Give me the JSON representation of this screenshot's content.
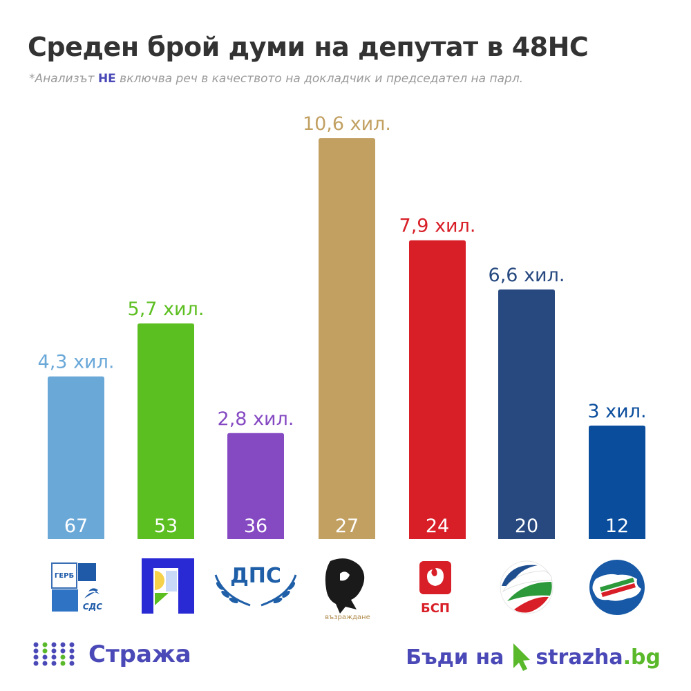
{
  "title": "Среден брой думи на депутат в 48НС",
  "subtitle": {
    "prefix": "*Анализът ",
    "highlight": "НЕ",
    "suffix": " включва реч в качеството на докладчик и председател на парл."
  },
  "chart_data": {
    "type": "bar",
    "title": "Среден брой думи на депутат в 48НС",
    "categories": [
      "ГЕРБ-СДС",
      "ПП",
      "ДПС",
      "Възраждане",
      "БСП",
      "ИТН",
      "БВ"
    ],
    "values": [
      4.3,
      5.7,
      2.8,
      10.6,
      7.9,
      6.6,
      3.0
    ],
    "value_labels": [
      "4,3 хил.",
      "5,7 хил.",
      "2,8 хил.",
      "10,6 хил.",
      "7,9 хил.",
      "6,6 хил.",
      "3 хил."
    ],
    "mp_counts": [
      "67",
      "53",
      "36",
      "27",
      "24",
      "20",
      "12"
    ],
    "colors": [
      "#6aa8d8",
      "#5cbf21",
      "#8549c2",
      "#c2a062",
      "#d81e27",
      "#27497f",
      "#0a4d9c"
    ],
    "ylim": [
      0,
      10.6
    ],
    "grid": false,
    "legend": "none"
  },
  "logos": {
    "gerb": {
      "top": "ГЕРБ",
      "bottom": "СДС"
    },
    "dps": "ДПС",
    "vazrazhdane": "възраждане",
    "bsp": "БСП"
  },
  "footer": {
    "brand": "Стража",
    "cta": "Бъди на",
    "site_name": "strazha",
    "site_domain": ".bg"
  }
}
